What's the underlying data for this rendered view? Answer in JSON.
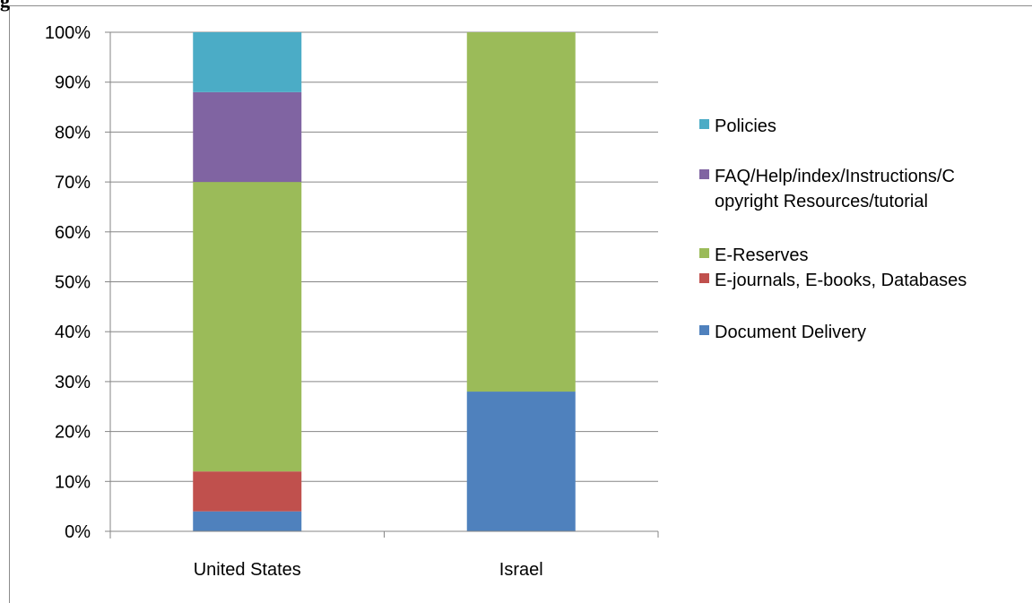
{
  "heading_fragment": "g",
  "chart_data": {
    "type": "bar",
    "stacked": true,
    "percent": true,
    "categories": [
      "United States",
      "Israel"
    ],
    "ylim": [
      0,
      100
    ],
    "yticks": [
      "0%",
      "10%",
      "20%",
      "30%",
      "40%",
      "50%",
      "60%",
      "70%",
      "80%",
      "90%",
      "100%"
    ],
    "series": [
      {
        "name": "Document Delivery",
        "color": "#4f81bd",
        "values": [
          4,
          28
        ]
      },
      {
        "name": "E-journals, E-books, Databases",
        "color": "#c0504d",
        "values": [
          8,
          0
        ]
      },
      {
        "name": "E-Reserves",
        "color": "#9bbb59",
        "values": [
          58,
          72
        ]
      },
      {
        "name": "FAQ/Help/index/Instructions/Copyright Resources/tutorial",
        "color": "#8064a2",
        "values": [
          18,
          0
        ]
      },
      {
        "name": "Policies",
        "color": "#4bacc6",
        "values": [
          12,
          0
        ]
      }
    ],
    "legend": {
      "position": "right",
      "entries": [
        {
          "lines": [
            "Policies"
          ],
          "color": "#4bacc6"
        },
        {
          "lines": [
            "FAQ/Help/index/Instructions/C",
            "opyright Resources/tutorial"
          ],
          "color": "#8064a2"
        },
        {
          "lines": [
            "E-Reserves"
          ],
          "color": "#9bbb59"
        },
        {
          "lines": [
            "E-journals, E-books, Databases"
          ],
          "color": "#c0504d"
        },
        {
          "lines": [
            "Document Delivery"
          ],
          "color": "#4f81bd"
        }
      ]
    },
    "grid": true
  }
}
